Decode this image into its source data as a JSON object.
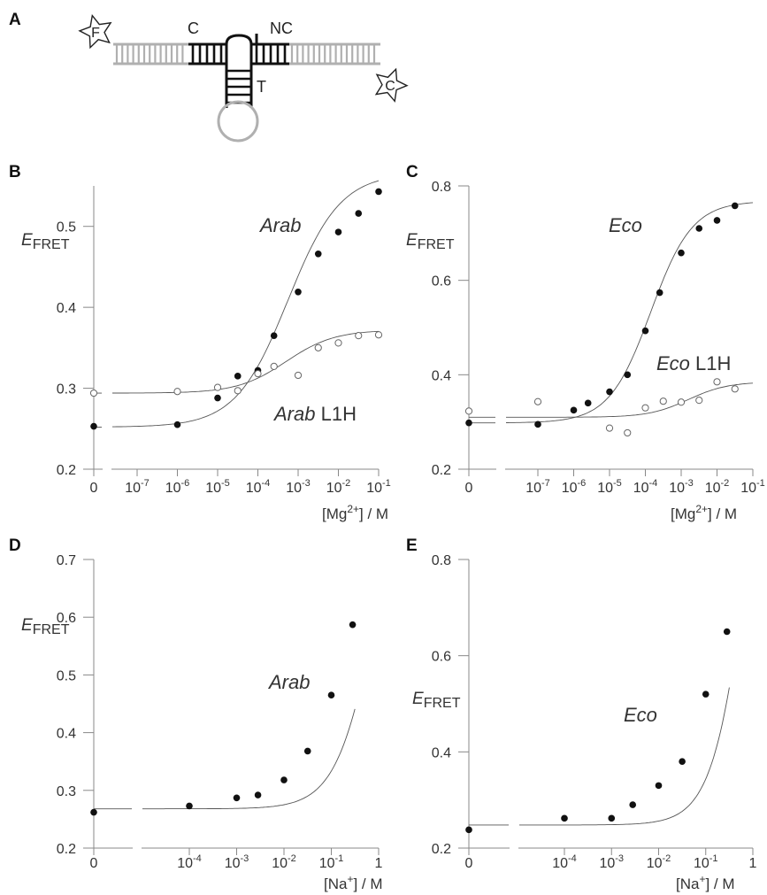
{
  "schematic": {
    "panel_letter": "A",
    "labels": [
      "C",
      "NC",
      "T"
    ],
    "fluorophores": [
      "F",
      "C"
    ]
  },
  "chart_data": [
    {
      "panel": "B",
      "type": "scatter",
      "xlabel_parts": [
        "[Mg",
        "2+",
        "] / M"
      ],
      "ylabel_parts": [
        "E",
        "FRET"
      ],
      "ylim": [
        0.2,
        0.55
      ],
      "yticks": [
        0.2,
        0.3,
        0.4,
        0.5
      ],
      "ytick_labels": [
        "0.2",
        "0.3",
        "0.4",
        "0.5"
      ],
      "xscale": "log with zero (broken axis)",
      "xlim_log": [
        -8,
        -1
      ],
      "xticks": [
        {
          "exp": null,
          "base": "0",
          "sup": ""
        },
        {
          "exp": -7,
          "base": "10",
          "sup": "-7"
        },
        {
          "exp": -6,
          "base": "10",
          "sup": "-6"
        },
        {
          "exp": -5,
          "base": "10",
          "sup": "-5"
        },
        {
          "exp": -4,
          "base": "10",
          "sup": "-4"
        },
        {
          "exp": -3,
          "base": "10",
          "sup": "-3"
        },
        {
          "exp": -2,
          "base": "10",
          "sup": "-2"
        },
        {
          "exp": -1,
          "base": "10",
          "sup": "-1"
        }
      ],
      "series": [
        {
          "name_parts": [
            "Arab",
            ""
          ],
          "marker": "filled",
          "points": [
            [
              0,
              0.253
            ],
            [
              -6,
              0.255
            ],
            [
              -5,
              0.288
            ],
            [
              -4.5,
              0.315
            ],
            [
              -4,
              0.322
            ],
            [
              -3.6,
              0.365
            ],
            [
              -3,
              0.419
            ],
            [
              -2.5,
              0.466
            ],
            [
              -2,
              0.493
            ],
            [
              -1.5,
              0.516
            ],
            [
              -1,
              0.543
            ]
          ],
          "fit": {
            "y0": 0.252,
            "amp": 0.314,
            "mid": -3.25,
            "width": 0.65
          }
        },
        {
          "name_parts": [
            "Arab",
            " L1H"
          ],
          "marker": "open",
          "points": [
            [
              0,
              0.294
            ],
            [
              -6,
              0.296
            ],
            [
              -5,
              0.301
            ],
            [
              -4.5,
              0.297
            ],
            [
              -4,
              0.318
            ],
            [
              -3.6,
              0.327
            ],
            [
              -3,
              0.316
            ],
            [
              -2.5,
              0.35
            ],
            [
              -2,
              0.356
            ],
            [
              -1.5,
              0.365
            ],
            [
              -1,
              0.366
            ]
          ],
          "fit": {
            "y0": 0.294,
            "amp": 0.078,
            "mid": -3.3,
            "width": 0.6
          }
        }
      ]
    },
    {
      "panel": "C",
      "type": "scatter",
      "xlabel_parts": [
        "[Mg",
        "2+",
        "] / M"
      ],
      "ylabel_parts": [
        "E",
        "FRET"
      ],
      "ylim": [
        0.2,
        0.8
      ],
      "yticks": [
        0.2,
        0.4,
        0.6,
        0.8
      ],
      "ytick_labels": [
        "0.2",
        "0.4",
        "0.6",
        "0.8"
      ],
      "xscale": "log with zero (broken axis)",
      "xlim_log": [
        -8,
        -1
      ],
      "xticks": [
        {
          "exp": null,
          "base": "0",
          "sup": ""
        },
        {
          "exp": -7,
          "base": "10",
          "sup": "-7"
        },
        {
          "exp": -6,
          "base": "10",
          "sup": "-6"
        },
        {
          "exp": -5,
          "base": "10",
          "sup": "-5"
        },
        {
          "exp": -4,
          "base": "10",
          "sup": "-4"
        },
        {
          "exp": -3,
          "base": "10",
          "sup": "-3"
        },
        {
          "exp": -2,
          "base": "10",
          "sup": "-2"
        },
        {
          "exp": -1,
          "base": "10",
          "sup": "-1"
        }
      ],
      "series": [
        {
          "name_parts": [
            "Eco",
            ""
          ],
          "marker": "filled",
          "points": [
            [
              0,
              0.298
            ],
            [
              -7,
              0.295
            ],
            [
              -6,
              0.325
            ],
            [
              -5.6,
              0.34
            ],
            [
              -5,
              0.364
            ],
            [
              -4.5,
              0.4
            ],
            [
              -4,
              0.493
            ],
            [
              -3.6,
              0.574
            ],
            [
              -3,
              0.658
            ],
            [
              -2.5,
              0.71
            ],
            [
              -2,
              0.727
            ],
            [
              -1.5,
              0.758
            ]
          ],
          "fit": {
            "y0": 0.298,
            "amp": 0.47,
            "mid": -3.85,
            "width": 0.58
          }
        },
        {
          "name_parts": [
            "Eco",
            " L1H"
          ],
          "marker": "open",
          "points": [
            [
              0,
              0.323
            ],
            [
              -7,
              0.343
            ],
            [
              -5,
              0.287
            ],
            [
              -4.5,
              0.277
            ],
            [
              -4,
              0.33
            ],
            [
              -3.5,
              0.344
            ],
            [
              -3,
              0.342
            ],
            [
              -2.5,
              0.346
            ],
            [
              -2,
              0.385
            ],
            [
              -1.5,
              0.37
            ]
          ],
          "fit": {
            "y0": 0.31,
            "amp": 0.075,
            "mid": -2.8,
            "width": 0.55
          }
        }
      ]
    },
    {
      "panel": "D",
      "type": "scatter",
      "xlabel_parts": [
        "[Na",
        "+",
        "] / M"
      ],
      "ylabel_parts": [
        "E",
        "FRET"
      ],
      "ylim": [
        0.2,
        0.7
      ],
      "yticks": [
        0.2,
        0.3,
        0.4,
        0.5,
        0.6,
        0.7
      ],
      "ytick_labels": [
        "0.2",
        "0.3",
        "0.4",
        "0.5",
        "0.6",
        "0.7"
      ],
      "xscale": "log with zero (broken axis)",
      "xlim_log": [
        -5,
        0
      ],
      "xticks": [
        {
          "exp": null,
          "base": "0",
          "sup": ""
        },
        {
          "exp": -4,
          "base": "10",
          "sup": "-4"
        },
        {
          "exp": -3,
          "base": "10",
          "sup": "-3"
        },
        {
          "exp": -2,
          "base": "10",
          "sup": "-2"
        },
        {
          "exp": -1,
          "base": "10",
          "sup": "-1"
        },
        {
          "exp": 0,
          "base": "1",
          "sup": ""
        }
      ],
      "series": [
        {
          "name_parts": [
            "Arab",
            ""
          ],
          "marker": "filled",
          "points": [
            [
              0,
              0.262
            ],
            [
              -4,
              0.273
            ],
            [
              -3,
              0.287
            ],
            [
              -2.55,
              0.292
            ],
            [
              -2,
              0.318
            ],
            [
              -1.5,
              0.368
            ],
            [
              -1,
              0.465
            ],
            [
              -0.55,
              0.587
            ]
          ],
          "fit": {
            "kind": "binding",
            "y0": 0.268,
            "amp": 0.72,
            "K": 1.0,
            "n": 1.0,
            "xmax_log": -0.5
          }
        }
      ]
    },
    {
      "panel": "E",
      "type": "scatter",
      "xlabel_parts": [
        "[Na",
        "+",
        "] / M"
      ],
      "ylabel_parts": [
        "E",
        "FRET"
      ],
      "ylim": [
        0.2,
        0.8
      ],
      "yticks": [
        0.2,
        0.4,
        0.6,
        0.8
      ],
      "ytick_labels": [
        "0.2",
        "0.4",
        "0.6",
        "0.8"
      ],
      "xscale": "log with zero (broken axis)",
      "xlim_log": [
        -5,
        0
      ],
      "xticks": [
        {
          "exp": null,
          "base": "0",
          "sup": ""
        },
        {
          "exp": -4,
          "base": "10",
          "sup": "-4"
        },
        {
          "exp": -3,
          "base": "10",
          "sup": "-3"
        },
        {
          "exp": -2,
          "base": "10",
          "sup": "-2"
        },
        {
          "exp": -1,
          "base": "10",
          "sup": "-1"
        },
        {
          "exp": 0,
          "base": "1",
          "sup": ""
        }
      ],
      "series": [
        {
          "name_parts": [
            "Eco",
            ""
          ],
          "marker": "filled",
          "points": [
            [
              0,
              0.238
            ],
            [
              -4,
              0.262
            ],
            [
              -3,
              0.262
            ],
            [
              -2.55,
              0.29
            ],
            [
              -2,
              0.33
            ],
            [
              -1.5,
              0.38
            ],
            [
              -1,
              0.52
            ],
            [
              -0.55,
              0.65
            ]
          ],
          "fit": {
            "kind": "binding",
            "y0": 0.248,
            "amp": 1.3,
            "K": 1.0,
            "n": 1.1,
            "xmax_log": -0.5
          }
        }
      ]
    }
  ]
}
